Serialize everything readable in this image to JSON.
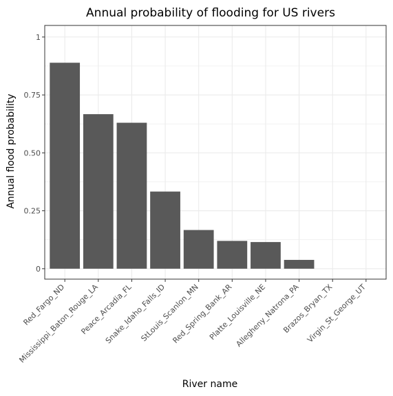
{
  "chart_data": {
    "type": "bar",
    "title": "Annual probability of flooding for US rivers",
    "xlabel": "River name",
    "ylabel": "Annual flood probability",
    "categories": [
      "Red_Fargo_ND",
      "Mississippi_Baton_Rouge_LA",
      "Peace_Arcadia_FL",
      "Snake_Idaho_Falls_ID",
      "StLouis_Scanlon_MN",
      "Red_Spring_Bank_AR",
      "Platte_Louisville_NE",
      "Allegheny_Natrona_PA",
      "Brazos_Bryan_TX",
      "Virgin_St_George_UT"
    ],
    "values": [
      0.889,
      0.667,
      0.63,
      0.333,
      0.167,
      0.12,
      0.115,
      0.038,
      0,
      0
    ],
    "ylim": [
      -0.045,
      1.05
    ],
    "yticks": [
      0,
      0.25,
      0.5,
      0.75,
      1
    ],
    "ytick_labels": [
      "0",
      "0.25",
      "0.50",
      "0.75",
      "1"
    ],
    "grid": true,
    "legend": "none",
    "bar_color": "#595959",
    "grid_color": "#ebebeb",
    "panel_border_color": "#333333"
  }
}
